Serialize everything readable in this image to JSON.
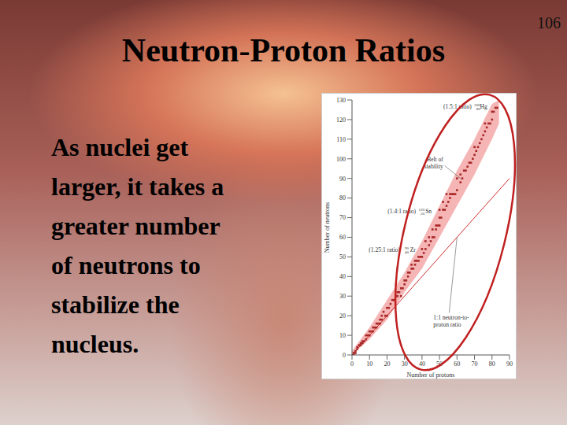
{
  "slide": {
    "title": "Neutron-Proton Ratios",
    "page": "106",
    "body_lines": [
      "As nuclei get",
      "larger, it takes a",
      "greater number",
      "of neutrons to",
      "stabilize the",
      "nucleus."
    ]
  },
  "chart_data": {
    "type": "scatter",
    "xlabel": "Number of protons",
    "ylabel": "Number of neutrons",
    "xlim": [
      0,
      90
    ],
    "ylim": [
      0,
      130
    ],
    "xticks": [
      0,
      10,
      20,
      30,
      40,
      50,
      60,
      70,
      80,
      90
    ],
    "yticks": [
      0,
      10,
      20,
      30,
      40,
      50,
      60,
      70,
      80,
      90,
      100,
      110,
      120,
      130
    ],
    "grid": false,
    "belt": {
      "color": "#f29c9c",
      "x": [
        0,
        10,
        20,
        30,
        40,
        50,
        60,
        70,
        80,
        84
      ],
      "lower": [
        0,
        8,
        18,
        32,
        44,
        60,
        76,
        92,
        110,
        118
      ],
      "upper": [
        2,
        14,
        28,
        42,
        58,
        76,
        94,
        110,
        128,
        130
      ]
    },
    "series": [
      {
        "type": "scatter",
        "color": "#a82828",
        "marker": "square",
        "x": [
          1,
          1,
          2,
          2,
          3,
          3,
          4,
          5,
          5,
          6,
          6,
          7,
          8,
          8,
          9,
          10,
          10,
          11,
          12,
          12,
          13,
          14,
          14,
          15,
          16,
          16,
          17,
          17,
          18,
          19,
          20,
          20,
          21,
          22,
          23,
          24,
          25,
          26,
          26,
          27,
          28,
          28,
          29,
          30,
          30,
          31,
          32,
          32,
          33,
          34,
          34,
          35,
          36,
          36,
          37,
          38,
          38,
          39,
          40,
          40,
          41,
          42,
          42,
          44,
          44,
          45,
          46,
          46,
          47,
          48,
          48,
          49,
          50,
          50,
          50,
          51,
          52,
          52,
          53,
          54,
          54,
          55,
          56,
          56,
          57,
          58,
          59,
          60,
          60,
          62,
          62,
          63,
          64,
          65,
          66,
          67,
          68,
          69,
          70,
          70,
          71,
          72,
          73,
          74,
          75,
          76,
          76,
          77,
          78,
          79,
          80,
          80,
          81,
          82,
          83
        ],
        "values": [
          0,
          1,
          1,
          2,
          3,
          4,
          5,
          5,
          6,
          6,
          7,
          7,
          8,
          10,
          10,
          10,
          12,
          12,
          12,
          14,
          14,
          14,
          16,
          16,
          16,
          18,
          18,
          20,
          22,
          20,
          20,
          24,
          24,
          26,
          28,
          28,
          30,
          30,
          32,
          32,
          30,
          34,
          34,
          36,
          38,
          38,
          40,
          42,
          42,
          44,
          46,
          44,
          46,
          48,
          48,
          50,
          48,
          50,
          50,
          54,
          52,
          54,
          58,
          56,
          60,
          58,
          60,
          64,
          60,
          64,
          66,
          66,
          66,
          70,
          74,
          70,
          74,
          78,
          74,
          76,
          82,
          78,
          80,
          82,
          82,
          82,
          82,
          84,
          90,
          88,
          92,
          90,
          94,
          94,
          96,
          98,
          98,
          100,
          102,
          106,
          104,
          106,
          108,
          110,
          112,
          114,
          118,
          116,
          118,
          118,
          120,
          124,
          124,
          126,
          126
        ]
      },
      {
        "type": "line",
        "color": "#d02a2a",
        "line_style": "solid",
        "x": [
          0,
          90
        ],
        "values": [
          0,
          90
        ]
      }
    ],
    "annotations": [
      {
        "text": "(1.5:1 ratio)",
        "mass": 200,
        "atomic_number": 80,
        "symbol": "Hg",
        "x": 80,
        "y": 120
      },
      {
        "text": "(1.4:1 ratio)",
        "mass": 120,
        "atomic_number": 50,
        "symbol": "Sn",
        "x": 50,
        "y": 70
      },
      {
        "text": "(1.25:1 ratio)",
        "mass": 90,
        "atomic_number": 40,
        "symbol": "Zr",
        "x": 40,
        "y": 50
      },
      {
        "lines": [
          "Belt of",
          "stability"
        ],
        "x": 62,
        "y": 90
      },
      {
        "lines": [
          "1:1 neutron-to-",
          "proton ratio"
        ],
        "x": 60,
        "y": 60
      }
    ]
  }
}
